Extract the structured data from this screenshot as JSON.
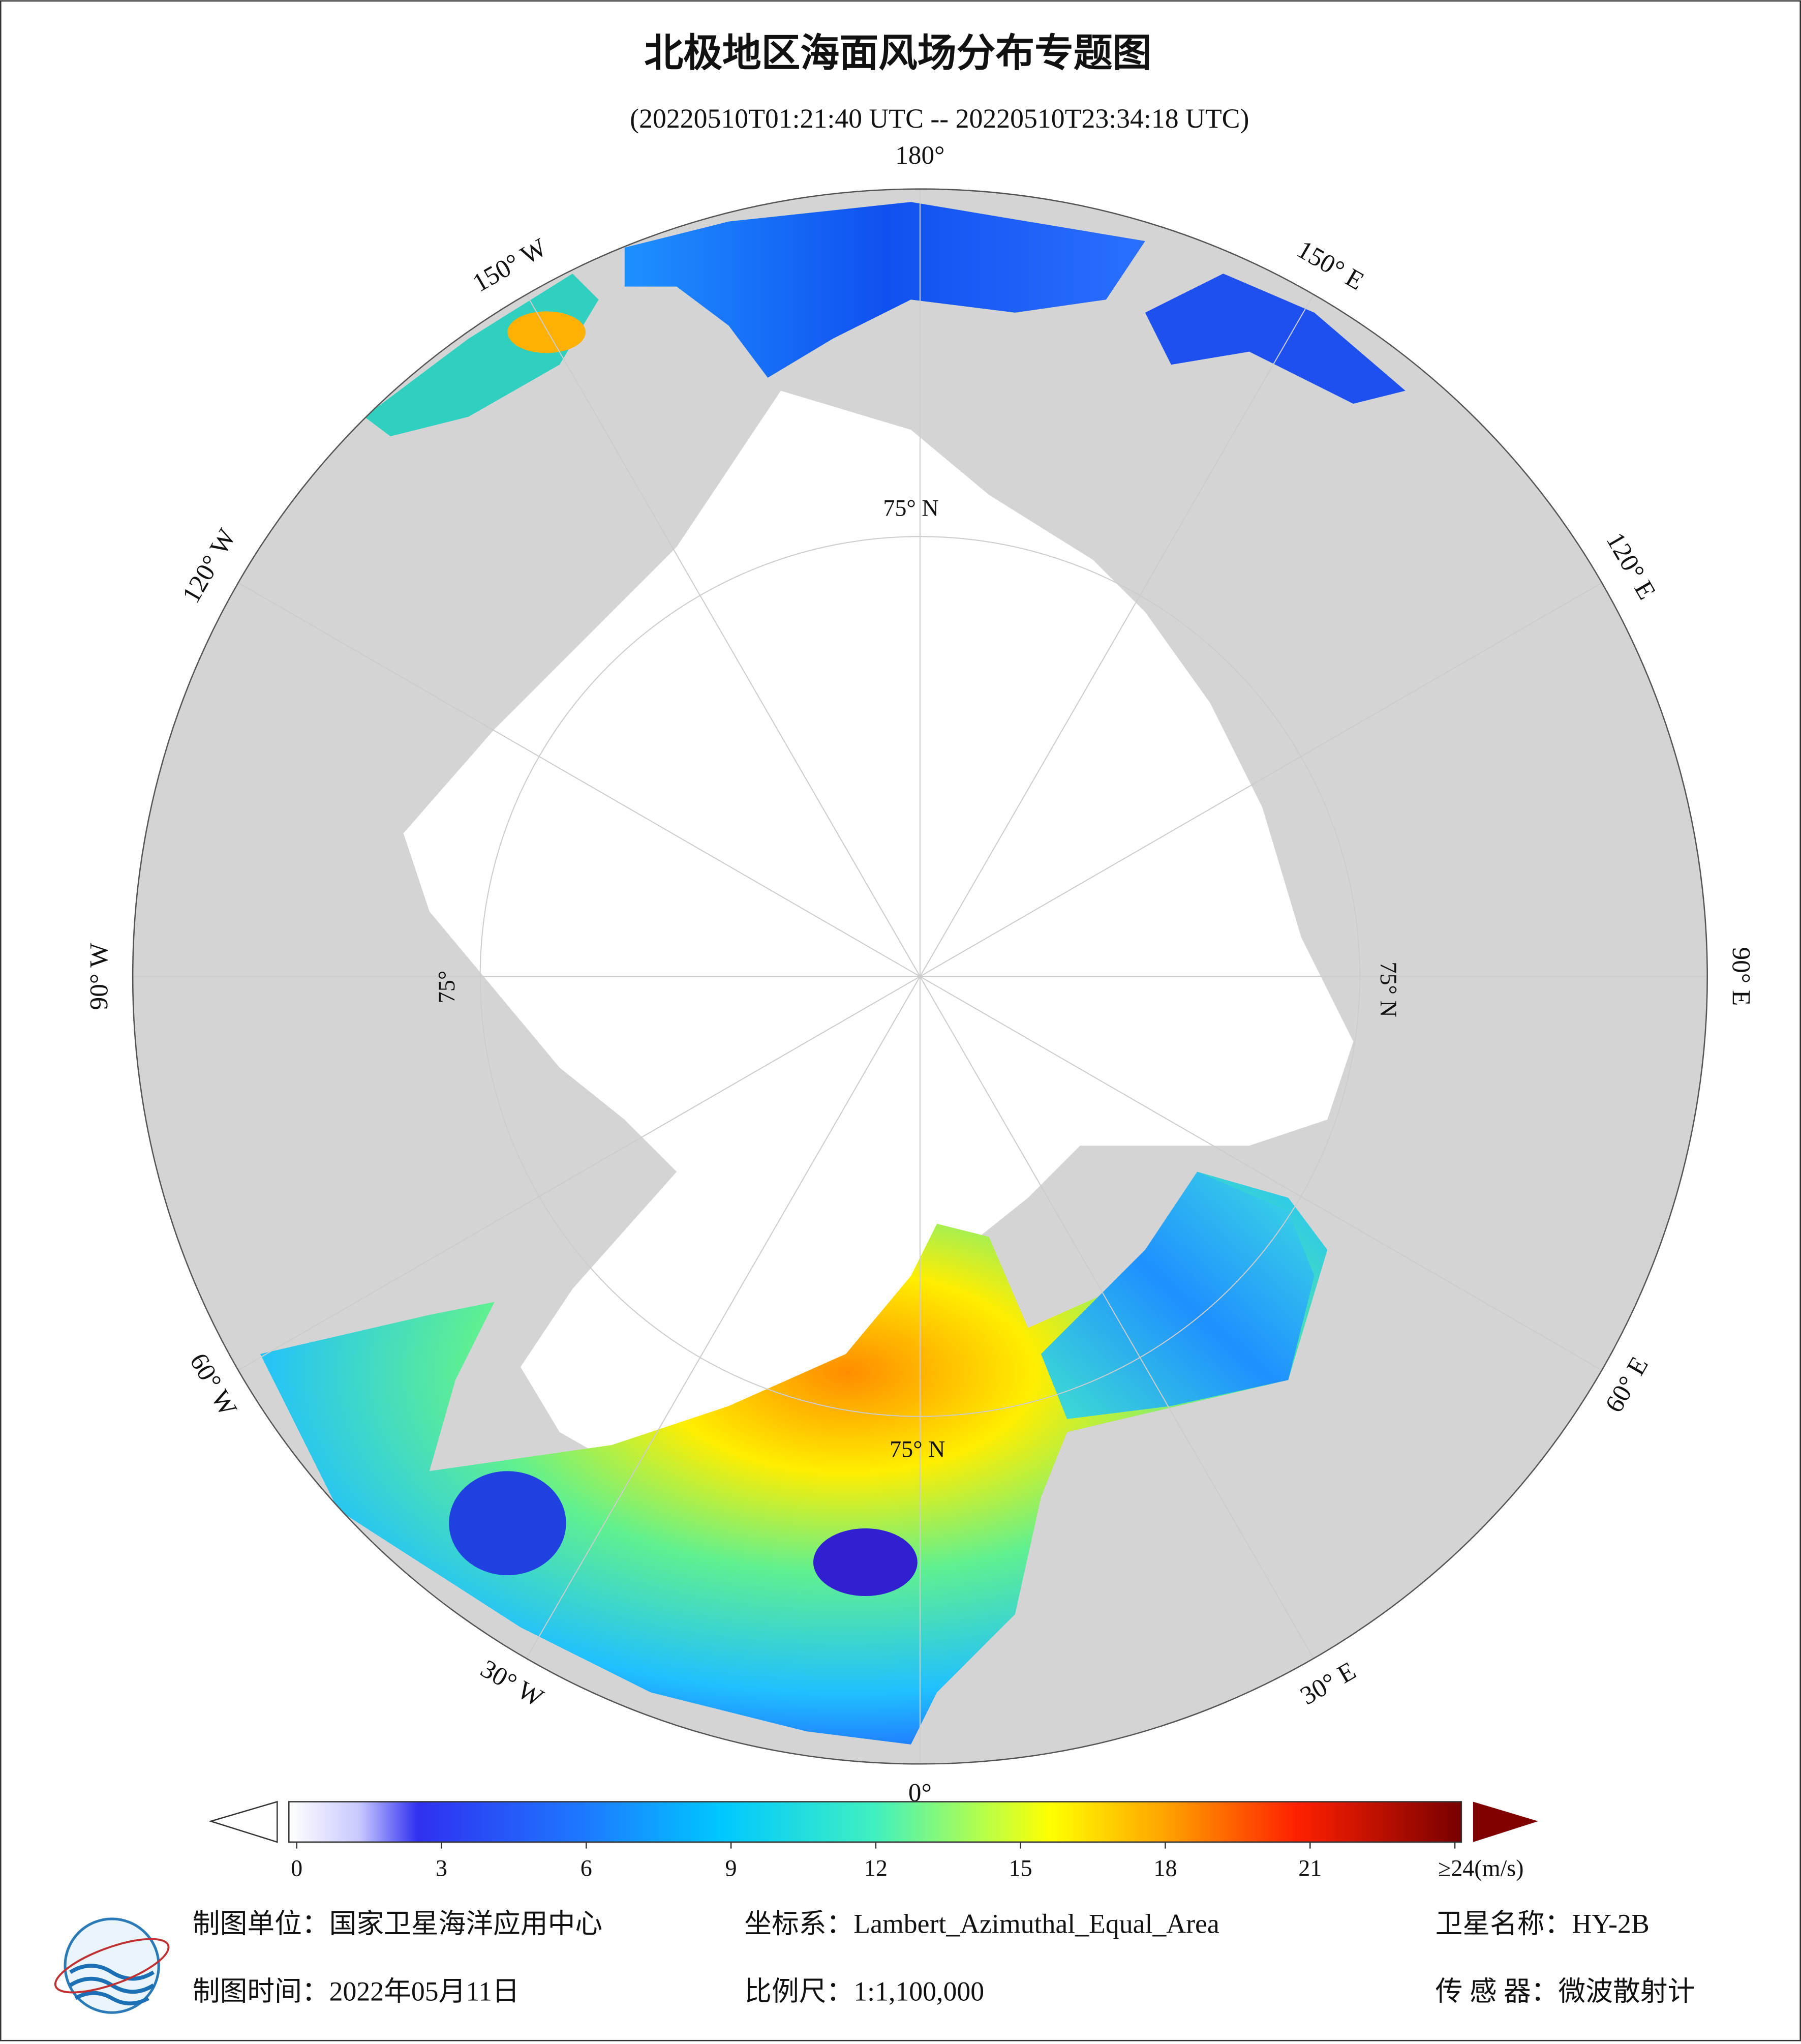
{
  "header": {
    "title": "北极地区海面风场分布专题图",
    "subtitle": "(20220510T01:21:40 UTC -- 20220510T23:34:18 UTC)"
  },
  "map": {
    "lon_labels": [
      "180°",
      "150° E",
      "120° E",
      "90° E",
      "60° E",
      "30° E",
      "0°",
      "30° W",
      "60° W",
      "90° W",
      "120° W",
      "150° W"
    ],
    "lat_labels": [
      "75° N",
      "75° N",
      "75° N",
      "75°"
    ]
  },
  "colorbar": {
    "range": [
      0,
      24
    ],
    "ticks": [
      0,
      3,
      6,
      9,
      12,
      15,
      18,
      21,
      {
        "value": 24,
        "label": "≥24(m/s)"
      }
    ]
  },
  "footer": {
    "unit": "制图单位：国家卫星海洋应用中心",
    "crs": "坐标系：Lambert_Azimuthal_Equal_Area",
    "satellite": "卫星名称：HY-2B",
    "date": "制图时间：2022年05月11日",
    "scale": "比例尺：1:1,100,000",
    "sensor": "传 感 器：微波散射计"
  }
}
